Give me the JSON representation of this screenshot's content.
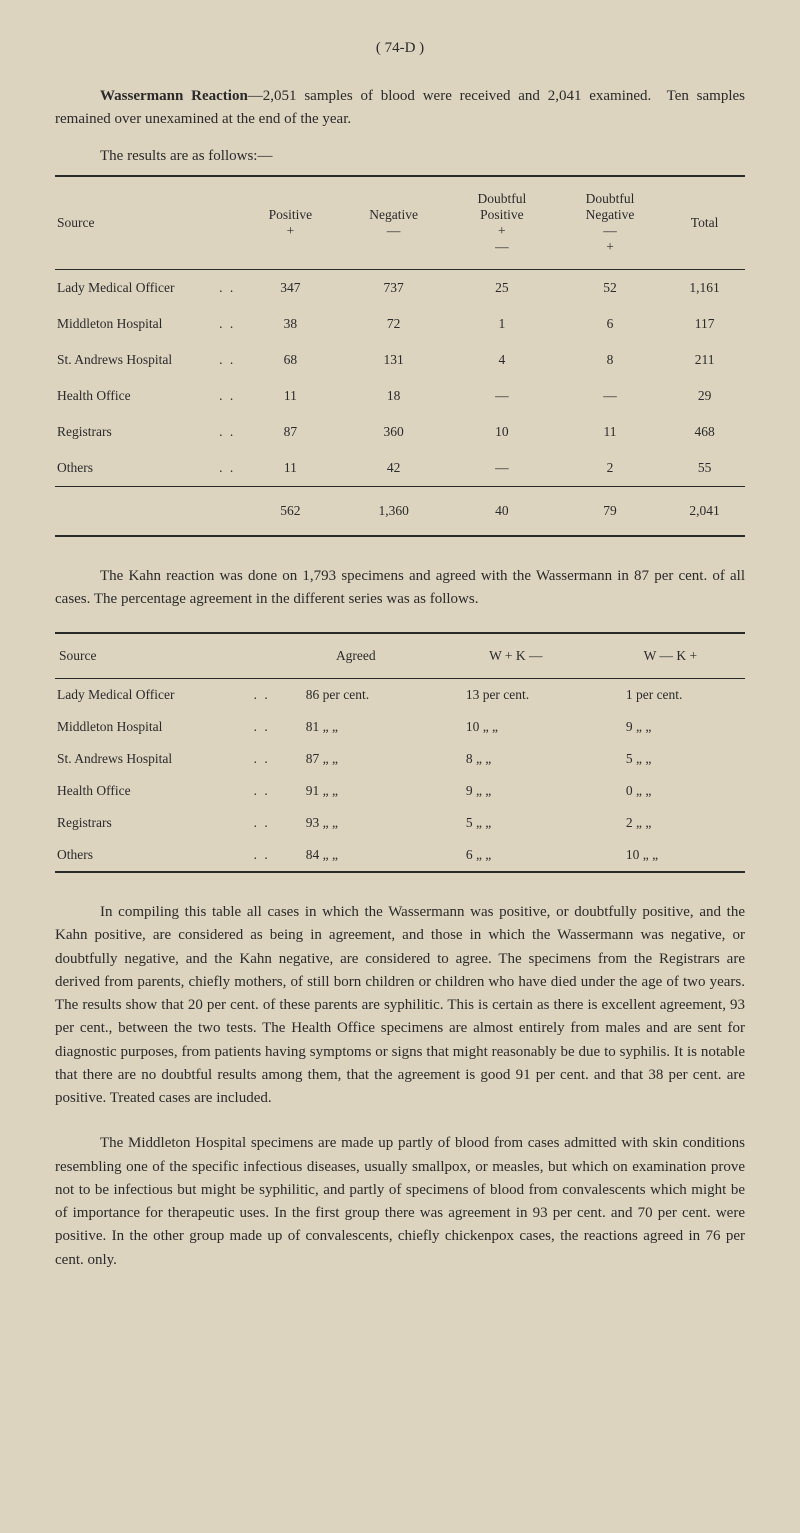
{
  "page_number": "(  74-D  )",
  "intro_paragraph": "Wassermann Reaction—2,051 samples of blood were received and 2,041 examined.  Ten samples remained over unexamined at the end of the year.",
  "results_caption": "The results are as follows:—",
  "table1": {
    "headers": {
      "source": "Source",
      "positive": "Positive\n+",
      "negative": "Negative\n—",
      "doubtful_positive": "Doubtful\nPositive\n+\n—",
      "doubtful_negative": "Doubtful\nNegative\n—\n+",
      "total": "Total"
    },
    "rows": [
      {
        "source": "Lady Medical Officer",
        "positive": "347",
        "negative": "737",
        "dp": "25",
        "dn": "52",
        "total": "1,161"
      },
      {
        "source": "Middleton Hospital",
        "positive": "38",
        "negative": "72",
        "dp": "1",
        "dn": "6",
        "total": "117"
      },
      {
        "source": "St. Andrews Hospital",
        "positive": "68",
        "negative": "131",
        "dp": "4",
        "dn": "8",
        "total": "211"
      },
      {
        "source": "Health Office",
        "positive": "11",
        "negative": "18",
        "dp": "—",
        "dn": "—",
        "total": "29"
      },
      {
        "source": "Registrars",
        "positive": "87",
        "negative": "360",
        "dp": "10",
        "dn": "11",
        "total": "468"
      },
      {
        "source": "Others",
        "positive": "11",
        "negative": "42",
        "dp": "—",
        "dn": "2",
        "total": "55"
      }
    ],
    "totals": {
      "positive": "562",
      "negative": "1,360",
      "dp": "40",
      "dn": "79",
      "total": "2,041"
    }
  },
  "mid_paragraph": "The Kahn reaction was done on 1,793 specimens and agreed with the Wassermann in 87 per cent. of all cases.  The percentage agreement in the different series was as follows.",
  "table2": {
    "headers": {
      "source": "Source",
      "agreed": "Agreed",
      "wk_minus": "W +   K —",
      "wk_plus": "W —   K +"
    },
    "rows": [
      {
        "source": "Lady Medical Officer",
        "agreed": "86 per cent.",
        "wkm": "13 per cent.",
        "wkp": "1 per cent."
      },
      {
        "source": "Middleton Hospital",
        "agreed": "81  „     „",
        "wkm": "10  „     „",
        "wkp": "9  „     „"
      },
      {
        "source": "St. Andrews Hospital",
        "agreed": "87  „     „",
        "wkm": "8  „     „",
        "wkp": "5  „     „"
      },
      {
        "source": "Health Office",
        "agreed": "91  „     „",
        "wkm": "9  „     „",
        "wkp": "0  „     „"
      },
      {
        "source": "Registrars",
        "agreed": "93  „     „",
        "wkm": "5  „     „",
        "wkp": "2  „     „"
      },
      {
        "source": "Others",
        "agreed": "84  „     „",
        "wkm": "6  „     „",
        "wkp": "10  „     „"
      }
    ]
  },
  "para_compiling": "In compiling this table all cases in which the Wassermann was positive, or doubtfully positive, and the Kahn positive, are considered as being in agreement, and those in which the Wassermann was negative, or doubtfully negative, and the Kahn negative, are considered to agree. The specimens from the Registrars are derived from parents, chiefly mothers, of still born children or children who have died under the age of two years.  The results show that 20 per cent. of these parents are syphilitic.  This is certain as there is excellent agreement, 93 per cent., between the two tests.  The Health Office specimens are almost entirely from males and are sent for diagnostic purposes, from patients having symptoms or signs that might reasonably be due to syphilis.  It is notable that there are no doubtful results among them, that the agreement is good 91 per cent. and that 38 per cent. are positive.  Treated cases are included.",
  "para_middleton": "The Middleton Hospital specimens are made up partly of blood from cases admitted with skin conditions resembling one of the specific infectious diseases, usually smallpox, or measles, but which on examination prove not to be infectious but might be syphilitic, and partly of specimens of blood from convalescents which might be of importance for therapeutic uses.  In the first group there was agreement in 93 per cent. and 70 per cent. were positive.  In the other group made up of convalescents, chiefly chickenpox cases, the reactions agreed in 76 per cent. only."
}
